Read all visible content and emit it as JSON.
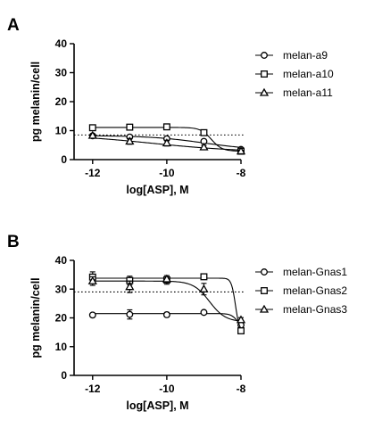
{
  "chart_data": [
    {
      "panel": "A",
      "type": "scatter",
      "xlabel": "log[ASP], M",
      "ylabel": "pg melanin/cell",
      "xlim": [
        -12.5,
        -8
      ],
      "ylim": [
        0,
        40
      ],
      "xticks": [
        -12,
        -10,
        -8
      ],
      "yticks": [
        0,
        10,
        20,
        30,
        40
      ],
      "reference_line": {
        "y": 8.5,
        "style": "dotted"
      },
      "legend": "right",
      "series": [
        {
          "name": "melan-a9",
          "marker": "circle",
          "x": [
            -12,
            -11,
            -10,
            -9,
            -8
          ],
          "y": [
            8.2,
            7.8,
            7.2,
            6.3,
            3.5
          ],
          "err": [
            0.4,
            0.4,
            0.4,
            0.5,
            0.3
          ],
          "fit": {
            "top": 8.3,
            "bottom": 3.2,
            "log_ec50": -9.0,
            "hill": -0.6
          }
        },
        {
          "name": "melan-a10",
          "marker": "square",
          "x": [
            -12,
            -11,
            -10,
            -9,
            -8
          ],
          "y": [
            11,
            11.2,
            11.3,
            9.3,
            2.9
          ],
          "err": [
            0.4,
            0.4,
            0.4,
            0.5,
            0.3
          ],
          "fit": {
            "top": 11.1,
            "bottom": 2.9,
            "log_ec50": -8.8,
            "hill": -3
          }
        },
        {
          "name": "melan-a11",
          "marker": "triangle",
          "x": [
            -12,
            -11,
            -10,
            -9,
            -8
          ],
          "y": [
            8.3,
            6.3,
            5.7,
            4.3,
            2.9
          ],
          "err": [
            0.5,
            1.0,
            1.0,
            0.6,
            0.3
          ],
          "fit": {
            "top": 8.8,
            "bottom": 2.5,
            "log_ec50": -10.4,
            "hill": -0.35
          }
        }
      ]
    },
    {
      "panel": "B",
      "type": "scatter",
      "xlabel": "log[ASP], M",
      "ylabel": "pg melanin/cell",
      "xlim": [
        -12.5,
        -8
      ],
      "ylim": [
        0,
        40
      ],
      "xticks": [
        -12,
        -10,
        -8
      ],
      "yticks": [
        0,
        10,
        20,
        30,
        40
      ],
      "reference_line": {
        "y": 29,
        "style": "dotted"
      },
      "legend": "right",
      "series": [
        {
          "name": "melan-Gnas1",
          "marker": "circle",
          "x": [
            -12,
            -11,
            -10,
            -9,
            -8
          ],
          "y": [
            21,
            21.2,
            21.1,
            21.9,
            17.5
          ],
          "err": [
            0.3,
            1.6,
            0.8,
            0.4,
            1.2
          ],
          "fit": {
            "top": 21.5,
            "bottom": 16.5,
            "log_ec50": -8.1,
            "hill": -5
          }
        },
        {
          "name": "melan-Gnas2",
          "marker": "square",
          "x": [
            -12,
            -11,
            -10,
            -9,
            -8
          ],
          "y": [
            34.2,
            33,
            33.2,
            34.3,
            15.5
          ],
          "err": [
            1.8,
            1.5,
            1.5,
            0.4,
            0.6
          ],
          "fit": {
            "top": 33.8,
            "bottom": 15.2,
            "log_ec50": -8.15,
            "hill": -8
          }
        },
        {
          "name": "melan-Gnas3",
          "marker": "triangle",
          "x": [
            -12,
            -11,
            -10,
            -9,
            -8
          ],
          "y": [
            32.8,
            30.8,
            33.5,
            30,
            19.3
          ],
          "err": [
            1.5,
            2.0,
            1.2,
            2.0,
            0.8
          ],
          "fit": {
            "top": 32.8,
            "bottom": 18.6,
            "log_ec50": -8.85,
            "hill": -2
          }
        }
      ]
    }
  ]
}
